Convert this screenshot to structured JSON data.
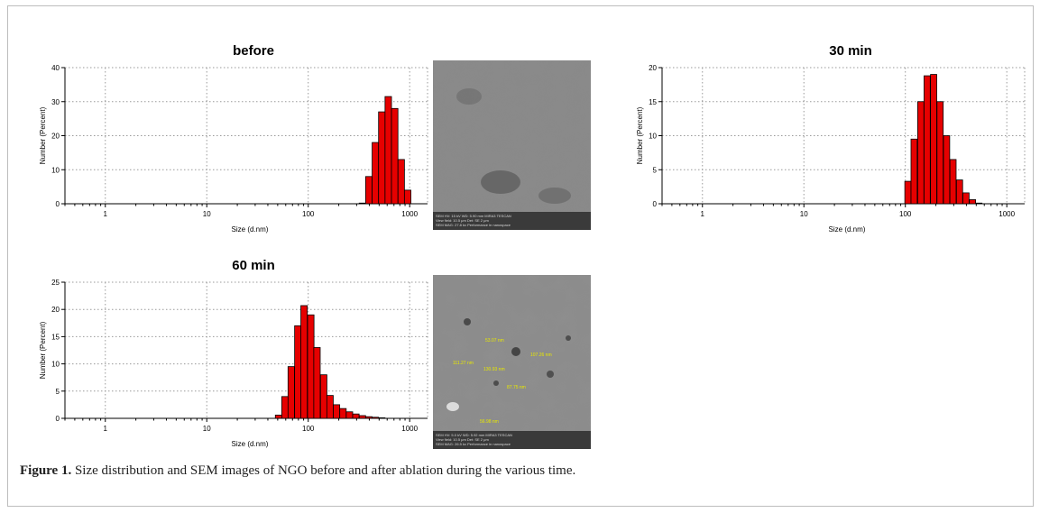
{
  "caption": {
    "label": "Figure 1.",
    "text": " Size distribution and SEM images of NGO before and after ablation during the various time."
  },
  "sem_images": [
    {
      "info_lines": [
        "SEM HV: 15 kV  WD: 5.90 mm  MIRA3 TESCAN",
        "View field: 10.5 μm  Det: SE  2 μm",
        "SEM MAG: 27.8 kx  Performance in nanospace"
      ],
      "labels": []
    },
    {
      "info_lines": [
        "SEM HV: 5.0 kV  WD: 5.92 mm  MIRA3 TESCAN",
        "View field: 10.5 μm  Det: SE  2 μm",
        "SEM MAG: 26.5 kx  Performance in nanospace"
      ],
      "labels": [
        "53.07 nm",
        "111.27 nm",
        "130.93 nm",
        "107.26 nm",
        "87.75 nm",
        "56.98 nm"
      ]
    }
  ],
  "chart_data": [
    {
      "type": "bar",
      "title": "before",
      "xlabel": "Size (d.nm)",
      "ylabel": "Number (Percent)",
      "xscale": "log",
      "xlim": [
        0.4,
        1500
      ],
      "ylim": [
        0,
        40
      ],
      "yticks": [
        0,
        10,
        20,
        30,
        40
      ],
      "xticks": [
        1,
        10,
        100,
        1000
      ],
      "grid": true,
      "bar_color": "#e60000",
      "x": [
        342,
        396,
        459,
        531,
        615,
        712,
        825,
        955
      ],
      "values": [
        0.2,
        8,
        18,
        27,
        31.5,
        28,
        13,
        4
      ]
    },
    {
      "type": "bar",
      "title": "30 min",
      "xlabel": "Size (d.nm)",
      "ylabel": "Number (Percent)",
      "xscale": "log",
      "xlim": [
        0.4,
        1500
      ],
      "ylim": [
        0,
        20
      ],
      "yticks": [
        0,
        5,
        10,
        15,
        20
      ],
      "xticks": [
        1,
        10,
        100,
        1000
      ],
      "grid": true,
      "bar_color": "#e60000",
      "x": [
        106,
        122,
        142,
        164,
        190,
        220,
        255,
        295,
        342,
        396,
        459,
        531
      ],
      "values": [
        3.3,
        9.5,
        15,
        18.8,
        19,
        15,
        10,
        6.5,
        3.5,
        1.6,
        0.6,
        0.1
      ]
    },
    {
      "type": "bar",
      "title": "60 min",
      "xlabel": "Size (d.nm)",
      "ylabel": "Number (Percent)",
      "xscale": "log",
      "xlim": [
        0.4,
        1500
      ],
      "ylim": [
        0,
        25
      ],
      "yticks": [
        0,
        5,
        10,
        15,
        20,
        25
      ],
      "xticks": [
        1,
        10,
        100,
        1000
      ],
      "grid": true,
      "bar_color": "#e60000",
      "x": [
        51,
        59,
        68,
        79,
        91,
        106,
        122,
        142,
        164,
        190,
        220,
        255,
        295,
        342,
        396,
        459,
        531
      ],
      "values": [
        0.6,
        4,
        9.5,
        17,
        20.7,
        19,
        13,
        8,
        4.2,
        2.5,
        1.8,
        1.2,
        0.8,
        0.5,
        0.3,
        0.2,
        0.1
      ]
    }
  ]
}
